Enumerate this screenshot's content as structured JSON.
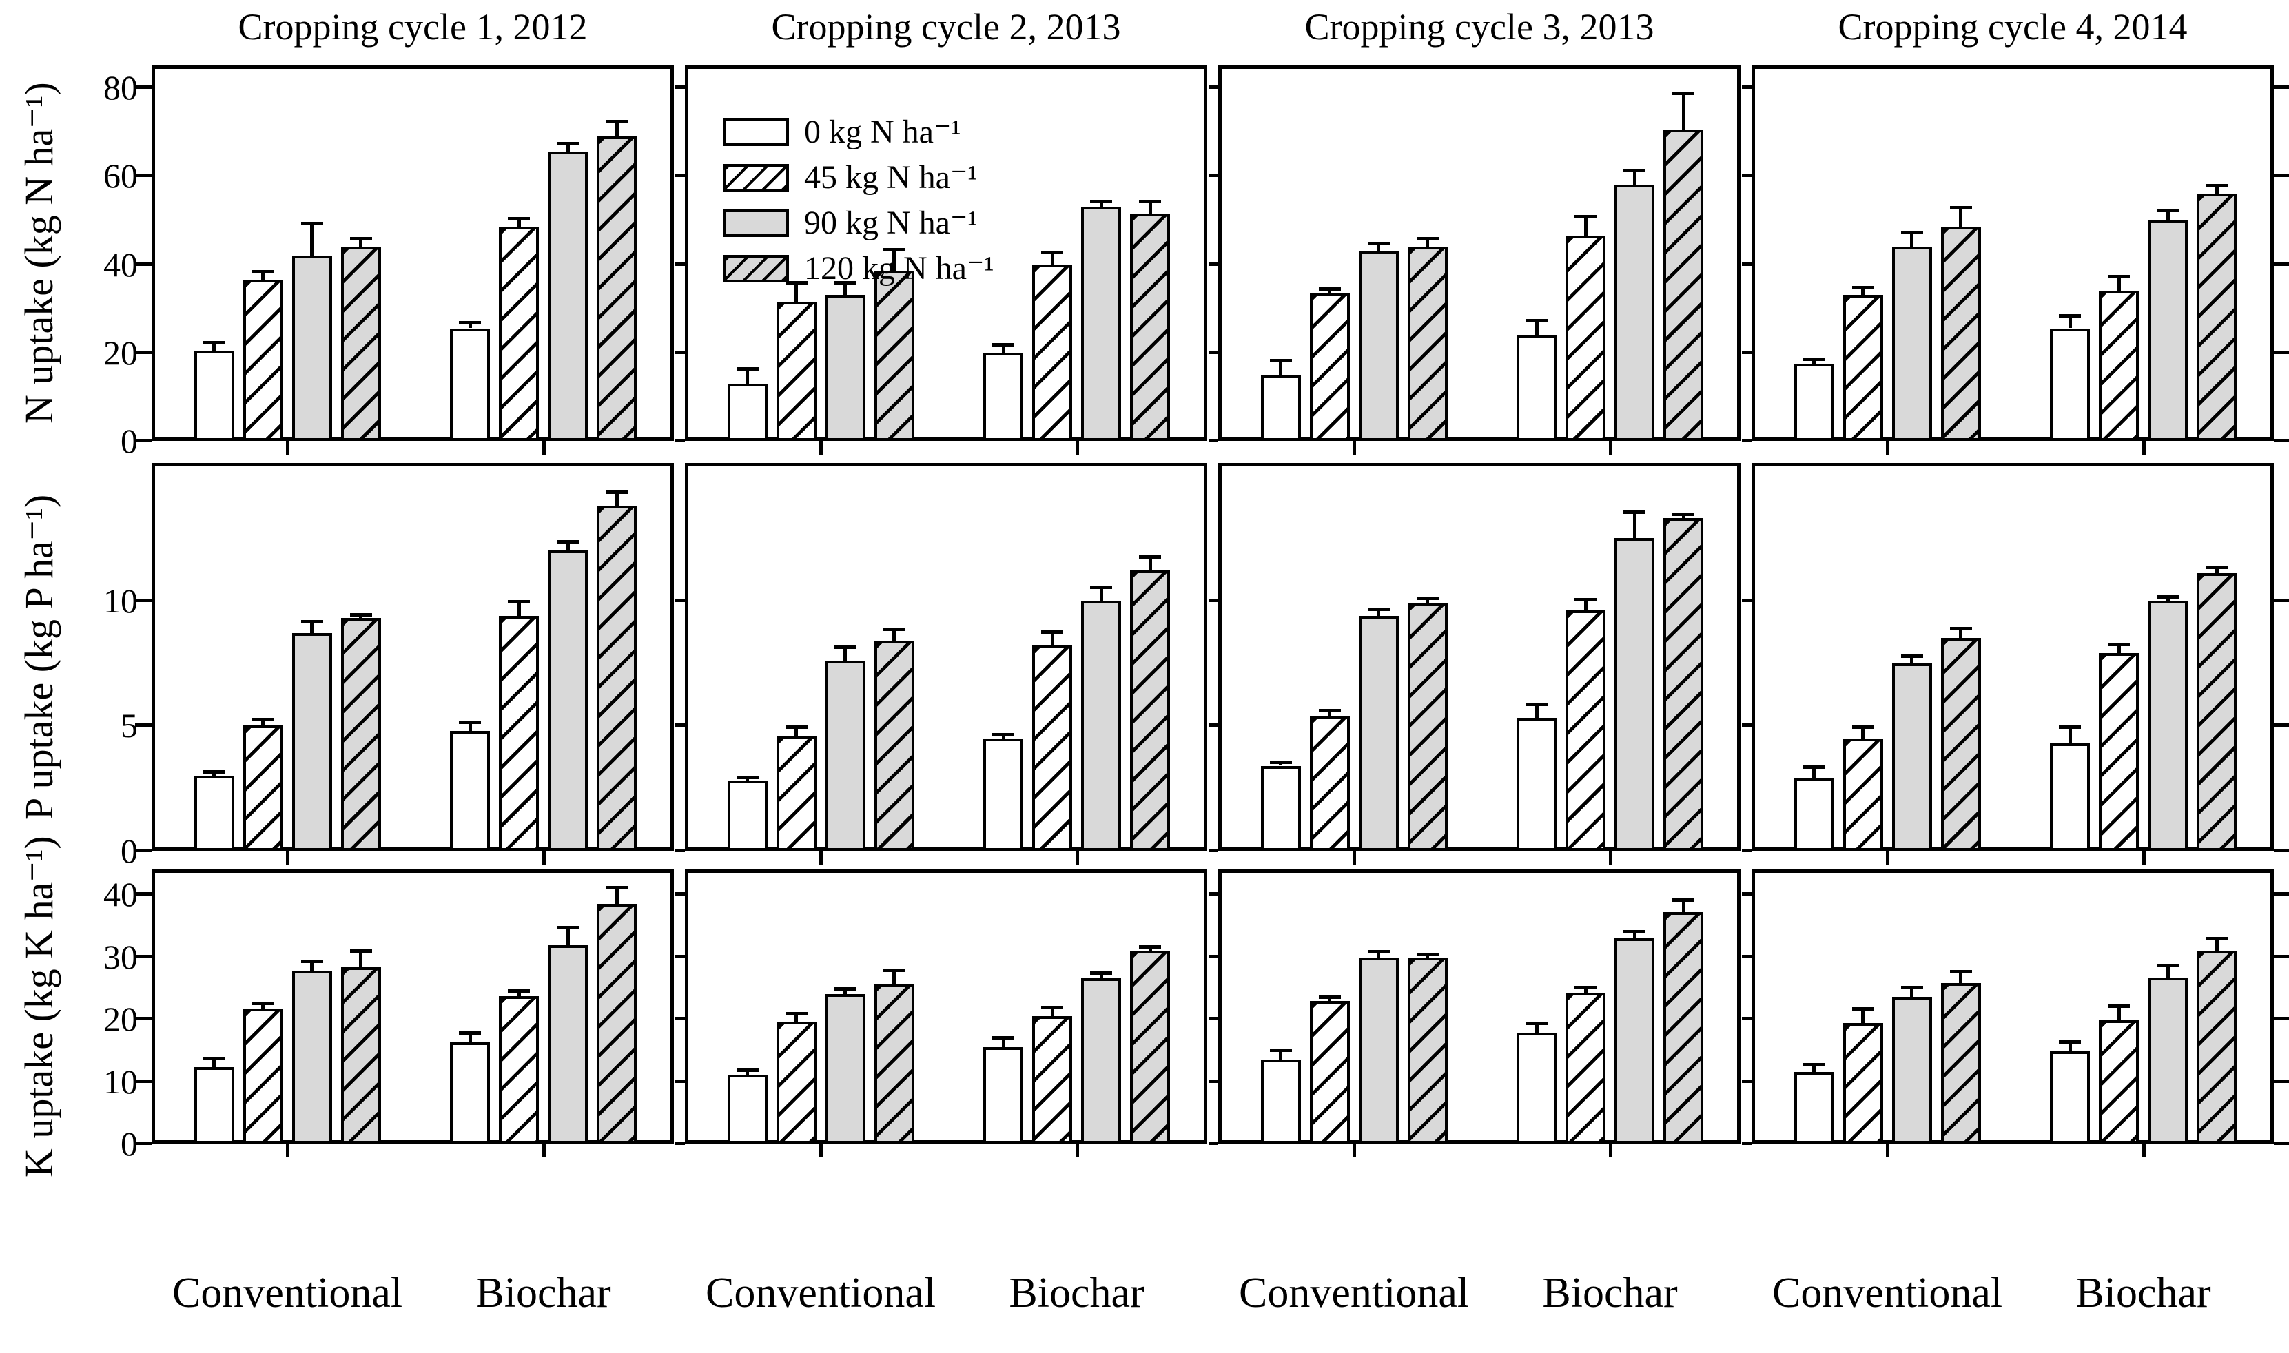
{
  "figure_title": "",
  "chart_data": {
    "type": "bar",
    "column_titles": [
      "Cropping cycle 1, 2012",
      "Cropping cycle 2, 2013",
      "Cropping cycle 3, 2013",
      "Cropping cycle 4, 2014"
    ],
    "group_labels": [
      "Conventional",
      "Biochar"
    ],
    "legend": [
      "0 kg N ha⁻¹",
      "45 kg N ha⁻¹",
      "90 kg N ha⁻¹",
      "120 kg N ha⁻¹"
    ],
    "legend_position": "top-left of second panel, first row",
    "grid": false,
    "bar_styles": [
      {
        "name": "0 kg N ha-1",
        "fill": "#ffffff",
        "hatch": false
      },
      {
        "name": "45 kg N ha-1",
        "fill": "#ffffff",
        "hatch": true
      },
      {
        "name": "90 kg N ha-1",
        "fill": "#d9d9d9",
        "hatch": false
      },
      {
        "name": "120 kg N ha-1",
        "fill": "#d9d9d9",
        "hatch": true
      }
    ],
    "rows": [
      {
        "ylabel": "N uptake (kg N ha⁻¹)",
        "yticks": [
          0,
          20,
          40,
          60,
          80
        ],
        "ymax": 85,
        "panels": [
          {
            "column": "Cropping cycle 1, 2012",
            "conventional": {
              "values": [
                20.5,
                36.5,
                42,
                44
              ],
              "errors": [
                1.5,
                1.5,
                7,
                1.5
              ]
            },
            "biochar": {
              "values": [
                25.5,
                48.5,
                65.5,
                69
              ],
              "errors": [
                1,
                1.5,
                1.5,
                3
              ]
            }
          },
          {
            "column": "Cropping cycle 2, 2013",
            "conventional": {
              "values": [
                13,
                31.5,
                33,
                38.5
              ],
              "errors": [
                3,
                4,
                2.5,
                4.5
              ]
            },
            "biochar": {
              "values": [
                20,
                40,
                53,
                51.5
              ],
              "errors": [
                1.5,
                2.5,
                1,
                2.5
              ]
            }
          },
          {
            "column": "Cropping cycle 3, 2013",
            "conventional": {
              "values": [
                15,
                33.5,
                43,
                44
              ],
              "errors": [
                3,
                0.7,
                1.5,
                1.5
              ]
            },
            "biochar": {
              "values": [
                24,
                46.5,
                58,
                70.5
              ],
              "errors": [
                3,
                4,
                3,
                8
              ]
            }
          },
          {
            "column": "Cropping cycle 4, 2014",
            "conventional": {
              "values": [
                17.5,
                33,
                44,
                48.5
              ],
              "errors": [
                0.8,
                1.5,
                3,
                4
              ]
            },
            "biochar": {
              "values": [
                25.5,
                34,
                50,
                56
              ],
              "errors": [
                2.5,
                3,
                2,
                1.5
              ]
            }
          }
        ]
      },
      {
        "ylabel": "P uptake (kg P ha⁻¹)",
        "yticks": [
          0,
          5,
          10
        ],
        "ymax": 15.5,
        "panels": [
          {
            "column": "Cropping cycle 1, 2012",
            "conventional": {
              "values": [
                3.0,
                5.0,
                8.7,
                9.3
              ],
              "errors": [
                0.1,
                0.2,
                0.4,
                0.1
              ]
            },
            "biochar": {
              "values": [
                4.8,
                9.4,
                12.0,
                13.8
              ],
              "errors": [
                0.3,
                0.5,
                0.3,
                0.5
              ]
            }
          },
          {
            "column": "Cropping cycle 2, 2013",
            "conventional": {
              "values": [
                2.8,
                4.6,
                7.6,
                8.4
              ],
              "errors": [
                0.1,
                0.3,
                0.5,
                0.4
              ]
            },
            "biochar": {
              "values": [
                4.5,
                8.2,
                10.0,
                11.2
              ],
              "errors": [
                0.1,
                0.5,
                0.5,
                0.5
              ]
            }
          },
          {
            "column": "Cropping cycle 3, 2013",
            "conventional": {
              "values": [
                3.4,
                5.4,
                9.4,
                9.9
              ],
              "errors": [
                0.1,
                0.15,
                0.2,
                0.15
              ]
            },
            "biochar": {
              "values": [
                5.3,
                9.6,
                12.5,
                13.3
              ],
              "errors": [
                0.5,
                0.4,
                1.0,
                0.1
              ]
            }
          },
          {
            "column": "Cropping cycle 4, 2014",
            "conventional": {
              "values": [
                2.9,
                4.5,
                7.5,
                8.5
              ],
              "errors": [
                0.4,
                0.4,
                0.25,
                0.35
              ]
            },
            "biochar": {
              "values": [
                4.3,
                7.9,
                10.0,
                11.1
              ],
              "errors": [
                0.6,
                0.3,
                0.1,
                0.2
              ]
            }
          }
        ]
      },
      {
        "ylabel": "K uptake (kg K ha⁻¹)",
        "yticks": [
          0,
          10,
          20,
          30,
          40
        ],
        "ymax": 44,
        "panels": [
          {
            "column": "Cropping cycle 1, 2012",
            "conventional": {
              "values": [
                12.3,
                21.7,
                27.8,
                28.3
              ],
              "errors": [
                1.2,
                0.6,
                1.3,
                2.4
              ]
            },
            "biochar": {
              "values": [
                16.3,
                23.7,
                31.8,
                38.5
              ],
              "errors": [
                1.3,
                0.6,
                2.7,
                2.4
              ]
            }
          },
          {
            "column": "Cropping cycle 2, 2013",
            "conventional": {
              "values": [
                11.1,
                19.6,
                24.0,
                25.7
              ],
              "errors": [
                0.5,
                1.1,
                0.7,
                1.9
              ]
            },
            "biochar": {
              "values": [
                15.5,
                20.5,
                26.5,
                31.0
              ],
              "errors": [
                1.3,
                1.2,
                0.7,
                0.4
              ]
            }
          },
          {
            "column": "Cropping cycle 3, 2013",
            "conventional": {
              "values": [
                13.5,
                22.9,
                29.8,
                29.9
              ],
              "errors": [
                1.3,
                0.4,
                0.8,
                0.3
              ]
            },
            "biochar": {
              "values": [
                17.8,
                24.2,
                33.0,
                37.2
              ],
              "errors": [
                1.3,
                0.7,
                0.8,
                1.7
              ]
            }
          },
          {
            "column": "Cropping cycle 4, 2014",
            "conventional": {
              "values": [
                11.5,
                19.3,
                23.6,
                25.8
              ],
              "errors": [
                1.0,
                2.1,
                1.3,
                1.6
              ]
            },
            "biochar": {
              "values": [
                14.8,
                19.8,
                26.6,
                31.0
              ],
              "errors": [
                1.3,
                2.1,
                1.8,
                1.7
              ]
            }
          }
        ]
      }
    ]
  }
}
